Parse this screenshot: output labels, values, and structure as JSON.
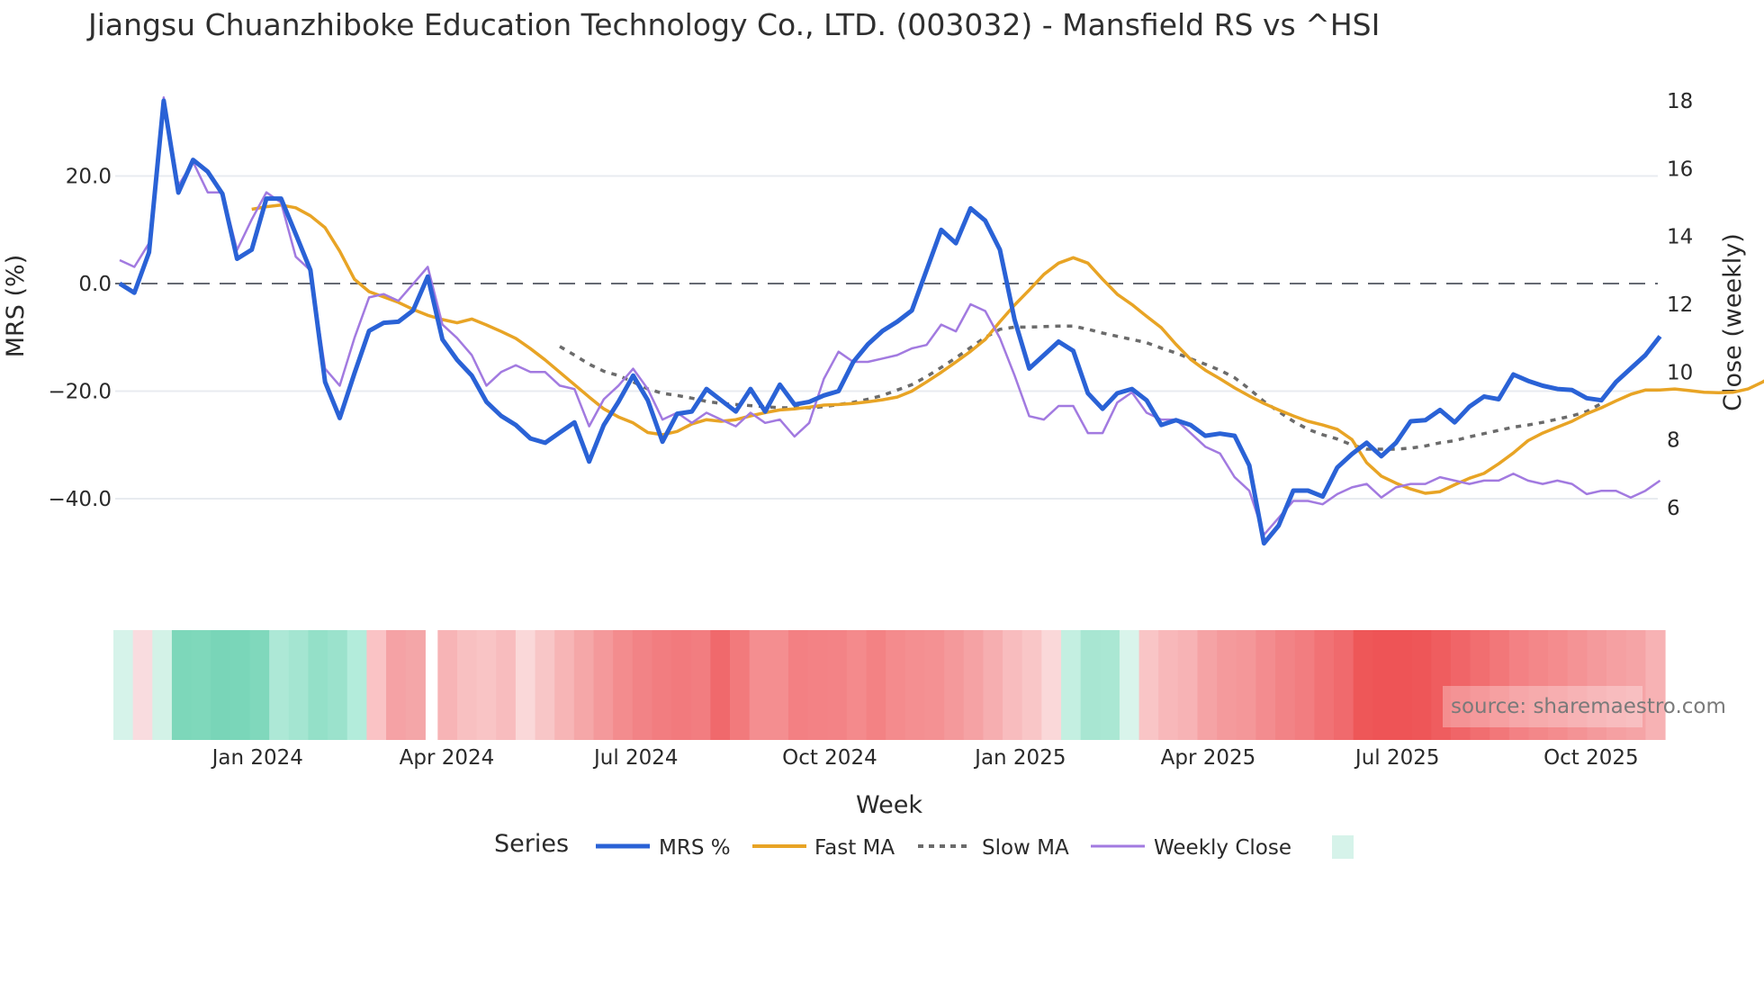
{
  "title": "Jiangsu Chuanzhiboke Education Technology Co., LTD. (003032) - Mansfield RS vs ^HSI",
  "source_label": "source: sharemaestro.com",
  "colors": {
    "mrs": "#2a62d6",
    "fast_ma": "#e8a425",
    "slow_ma": "#6b6b6b",
    "weekly_close": "#a27ae0",
    "zero_line": "#666a73",
    "grid": "#e8ebf0",
    "heat_green_strong": "#79d7b9",
    "heat_red_strong": "#ef5555"
  },
  "chart_data": {
    "type": "line",
    "title": "Jiangsu Chuanzhiboke Education Technology Co., LTD. (003032) - Mansfield RS vs ^HSI",
    "xlabel": "Week",
    "ylabel": "MRS (%)",
    "y2label": "Close (weekly)",
    "x_tick_labels": [
      "Jan 2024",
      "Apr 2024",
      "Jul 2024",
      "Oct 2024",
      "Jan 2025",
      "Apr 2025",
      "Jul 2025",
      "Oct 2025"
    ],
    "x_tick_index": [
      9.4,
      22.3,
      35.2,
      48.4,
      61.4,
      74.2,
      87.1,
      100.3
    ],
    "y_ticks": [
      20.0,
      0.0,
      -20.0,
      -40.0
    ],
    "y_tick_labels": [
      "20.0",
      "0.0",
      "−20.0",
      "−40.0"
    ],
    "y2_ticks": [
      18,
      16,
      14,
      12,
      10,
      8,
      6
    ],
    "y2_tick_labels": [
      "18",
      "16",
      "14",
      "12",
      "10",
      "8",
      "6"
    ],
    "ylim": [
      -53.5,
      38
    ],
    "y2lim": [
      4.6,
      18.6
    ],
    "grid": true,
    "zero_line": "dashed",
    "legend_position": "bottom",
    "legend_title": "Series",
    "legend": [
      "MRS %",
      "Fast MA",
      "Slow MA",
      "Weekly Close"
    ],
    "n_weeks": 106,
    "series": [
      {
        "name": "MRS %",
        "axis": "left",
        "values": [
          0.0,
          -1.7,
          5.8,
          34.0,
          16.9,
          23.0,
          20.8,
          16.7,
          4.6,
          6.3,
          15.8,
          15.8,
          9.2,
          2.5,
          -18.3,
          -25.0,
          -16.7,
          -8.8,
          -7.3,
          -7.1,
          -5.0,
          1.3,
          -10.4,
          -14.2,
          -17.1,
          -22.0,
          -24.6,
          -26.3,
          -28.8,
          -29.6,
          -27.7,
          -25.8,
          -33.1,
          -26.3,
          -22.0,
          -17.1,
          -21.7,
          -29.4,
          -24.2,
          -23.8,
          -19.6,
          -21.7,
          -23.8,
          -19.6,
          -23.8,
          -18.8,
          -22.5,
          -22.0,
          -20.8,
          -20.0,
          -14.6,
          -11.3,
          -8.8,
          -7.1,
          -5.0,
          2.5,
          10.0,
          7.5,
          14.0,
          11.7,
          6.3,
          -6.7,
          -15.8,
          -13.3,
          -10.8,
          -12.5,
          -20.4,
          -23.3,
          -20.4,
          -19.6,
          -21.7,
          -26.3,
          -25.4,
          -26.3,
          -28.3,
          -27.9,
          -28.3,
          -33.8,
          -48.3,
          -45.0,
          -38.5,
          -38.5,
          -39.6,
          -34.2,
          -31.7,
          -29.6,
          -32.1,
          -29.6,
          -25.6,
          -25.4,
          -23.5,
          -25.8,
          -22.9,
          -21.0,
          -21.5,
          -16.9,
          -18.1,
          -19.0,
          -19.6,
          -19.8,
          -21.3,
          -21.7,
          -18.3,
          -15.8,
          -13.3,
          -9.8
        ]
      },
      {
        "name": "Fast MA",
        "axis": "left",
        "start_index": 9,
        "values": [
          13.8,
          14.3,
          14.6,
          14.1,
          12.6,
          10.4,
          6.0,
          0.8,
          -1.5,
          -2.5,
          -3.5,
          -4.8,
          -5.9,
          -6.7,
          -7.3,
          -6.6,
          -7.7,
          -8.9,
          -10.2,
          -12.1,
          -14.2,
          -16.5,
          -18.8,
          -21.1,
          -23.3,
          -24.8,
          -25.9,
          -27.7,
          -28.1,
          -27.5,
          -26.1,
          -25.3,
          -25.6,
          -25.3,
          -24.6,
          -24.0,
          -23.5,
          -23.3,
          -23.0,
          -22.6,
          -22.5,
          -22.3,
          -22.0,
          -21.6,
          -21.1,
          -20.0,
          -18.3,
          -16.5,
          -14.6,
          -12.6,
          -10.4,
          -7.1,
          -4.0,
          -1.2,
          1.7,
          3.8,
          4.8,
          3.8,
          0.8,
          -2.0,
          -3.9,
          -6.1,
          -8.2,
          -11.3,
          -14.1,
          -16.1,
          -17.7,
          -19.4,
          -20.9,
          -22.3,
          -23.5,
          -24.6,
          -25.6,
          -26.3,
          -27.1,
          -29.0,
          -33.3,
          -35.8,
          -37.1,
          -38.2,
          -39.0,
          -38.7,
          -37.4,
          -36.2,
          -35.3,
          -33.5,
          -31.5,
          -29.2,
          -27.8,
          -26.7,
          -25.6,
          -24.2,
          -23.1,
          -21.8,
          -20.6,
          -19.8,
          -19.8,
          -19.6,
          -19.9,
          -20.2,
          -20.3,
          -20.2,
          -19.6,
          -18.3,
          -16.6
        ]
      },
      {
        "name": "Slow MA",
        "axis": "left",
        "start_index": 30,
        "values": [
          -11.7,
          -13.3,
          -15.0,
          -16.3,
          -17.1,
          -18.3,
          -19.6,
          -20.4,
          -20.8,
          -21.3,
          -21.9,
          -22.3,
          -22.5,
          -22.7,
          -22.9,
          -23.1,
          -23.1,
          -23.1,
          -22.9,
          -22.5,
          -22.1,
          -21.5,
          -20.8,
          -19.8,
          -18.8,
          -17.3,
          -15.6,
          -13.8,
          -11.9,
          -10.0,
          -8.5,
          -8.1,
          -8.1,
          -8.0,
          -7.9,
          -7.9,
          -8.5,
          -9.2,
          -9.8,
          -10.4,
          -11.0,
          -12.0,
          -12.9,
          -14.0,
          -15.0,
          -16.1,
          -17.5,
          -19.6,
          -21.9,
          -23.8,
          -25.6,
          -27.1,
          -28.1,
          -28.9,
          -30.0,
          -30.8,
          -30.8,
          -30.8,
          -30.6,
          -30.2,
          -29.6,
          -29.2,
          -28.5,
          -27.9,
          -27.3,
          -26.7,
          -26.3,
          -25.8,
          -25.2,
          -24.6,
          -23.8,
          -22.3
        ]
      },
      {
        "name": "Weekly Close",
        "axis": "right",
        "values": [
          13.3,
          13.1,
          13.8,
          18.1,
          15.5,
          16.2,
          15.3,
          15.3,
          13.6,
          14.5,
          15.3,
          15.0,
          13.4,
          13.0,
          10.1,
          9.6,
          11.0,
          12.2,
          12.3,
          12.1,
          12.6,
          13.1,
          11.4,
          11.0,
          10.5,
          9.6,
          10.0,
          10.2,
          10.0,
          10.0,
          9.6,
          9.5,
          8.4,
          9.2,
          9.6,
          10.1,
          9.5,
          8.6,
          8.8,
          8.5,
          8.8,
          8.6,
          8.4,
          8.8,
          8.5,
          8.6,
          8.1,
          8.5,
          9.8,
          10.6,
          10.3,
          10.3,
          10.4,
          10.5,
          10.7,
          10.8,
          11.4,
          11.2,
          12.0,
          11.8,
          11.0,
          9.9,
          8.7,
          8.6,
          9.0,
          9.0,
          8.2,
          8.2,
          9.1,
          9.4,
          8.8,
          8.6,
          8.6,
          8.2,
          7.8,
          7.6,
          6.9,
          6.5,
          5.2,
          5.7,
          6.2,
          6.2,
          6.1,
          6.4,
          6.6,
          6.7,
          6.3,
          6.6,
          6.7,
          6.7,
          6.9,
          6.8,
          6.7,
          6.8,
          6.8,
          7.0,
          6.8,
          6.7,
          6.8,
          6.7,
          6.4,
          6.5,
          6.5,
          6.3,
          6.5,
          6.8
        ]
      }
    ],
    "heatmap_strip": {
      "description": "Per-week MRS color band (green = positive, red = negative)",
      "gaps_after_index": [
        15
      ],
      "colors": [
        "#d6f3ea",
        "#f9dcdf",
        "#d3f2e7",
        "#7dd7ba",
        "#7fd8bb",
        "#79d5b8",
        "#7ad6b9",
        "#80d8bc",
        "#ade8d6",
        "#a4e5d1",
        "#94e0c8",
        "#9be2cc",
        "#b3ecdb",
        "#fac3c5",
        "#f5a2a5",
        "#f4a6a8",
        "#f7b4b6",
        "#f8c0c1",
        "#f9c4c5",
        "#f8bcbe",
        "#fad8d9",
        "#f8c6c7",
        "#f7b5b6",
        "#f5a7a8",
        "#f4999b",
        "#f38c8e",
        "#f28386",
        "#f27d80",
        "#f27a7d",
        "#f27d80",
        "#f0696c",
        "#f27a7c",
        "#f48e90",
        "#f48e90",
        "#f38083",
        "#f38285",
        "#f38386",
        "#f48a8c",
        "#f38284",
        "#f48b8d",
        "#f48f91",
        "#f49193",
        "#f4999b",
        "#f5a2a4",
        "#f6aeb0",
        "#f8bcbe",
        "#f9c6c7",
        "#fad8d9",
        "#c4efe1",
        "#a8e6d2",
        "#aae7d3",
        "#d9f4eb",
        "#f9c5c6",
        "#f8b8ba",
        "#f7b3b5",
        "#f5a3a5",
        "#f49a9c",
        "#f49799",
        "#f38c8f",
        "#f28386",
        "#f27d80",
        "#f17275",
        "#f06a6d",
        "#ee5758",
        "#ee5456",
        "#ee5456",
        "#ee5658",
        "#ef5d5f",
        "#f06568",
        "#f16e70",
        "#f27779",
        "#f38184",
        "#f38789",
        "#f48c8e",
        "#f49395",
        "#f49a9c",
        "#f5a0a2",
        "#f5a4a6",
        "#f7b2b4"
      ]
    }
  }
}
